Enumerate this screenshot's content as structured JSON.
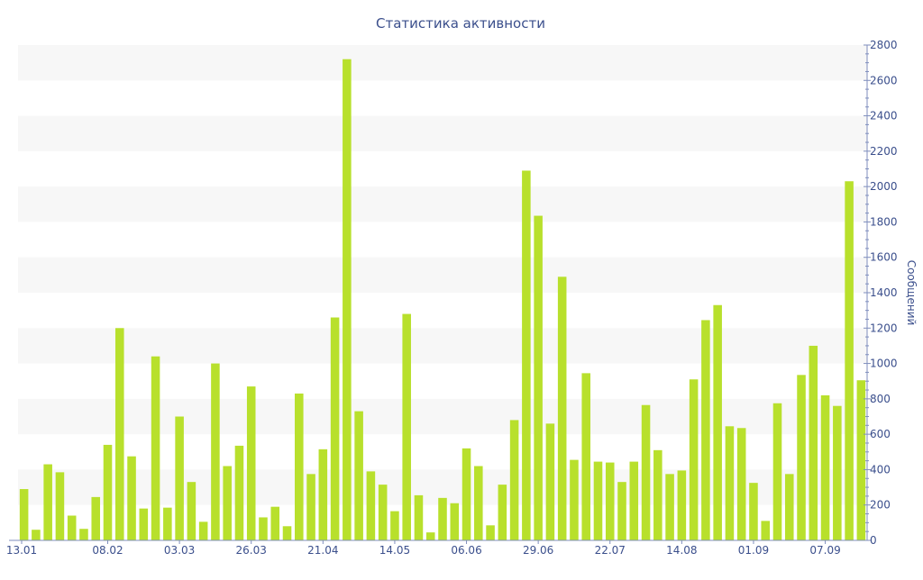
{
  "chart_data": {
    "type": "bar",
    "title": "Статистика активности",
    "ylabel": "Сообщений",
    "xlabel": "",
    "ylim": [
      0,
      2800
    ],
    "y_ticks": [
      0,
      200,
      400,
      600,
      800,
      1000,
      1200,
      1400,
      1600,
      1800,
      2000,
      2200,
      2400,
      2600,
      2800
    ],
    "y_axis_side": "right",
    "grid": "alternating horizontal bands",
    "legend": "none",
    "bar_color": "#b8e02c",
    "x_ticks": [
      {
        "label": "13.01",
        "index": 0
      },
      {
        "label": "08.02",
        "index": 7
      },
      {
        "label": "03.03",
        "index": 13
      },
      {
        "label": "26.03",
        "index": 19
      },
      {
        "label": "21.04",
        "index": 25
      },
      {
        "label": "14.05",
        "index": 31
      },
      {
        "label": "06.06",
        "index": 37
      },
      {
        "label": "29.06",
        "index": 43
      },
      {
        "label": "22.07",
        "index": 49
      },
      {
        "label": "14.08",
        "index": 55
      },
      {
        "label": "01.09",
        "index": 61
      },
      {
        "label": "07.09",
        "index": 67
      }
    ],
    "values": [
      290,
      60,
      430,
      385,
      140,
      65,
      245,
      540,
      1200,
      475,
      180,
      1040,
      185,
      700,
      330,
      105,
      1000,
      420,
      535,
      870,
      130,
      190,
      80,
      830,
      375,
      515,
      1260,
      2720,
      730,
      390,
      315,
      165,
      1280,
      255,
      45,
      240,
      210,
      520,
      420,
      85,
      315,
      680,
      2090,
      1835,
      660,
      1490,
      455,
      945,
      445,
      440,
      330,
      445,
      765,
      510,
      375,
      395,
      910,
      1245,
      1330,
      645,
      635,
      325,
      110,
      775,
      375,
      935,
      1100,
      820,
      760,
      2030,
      905
    ]
  }
}
